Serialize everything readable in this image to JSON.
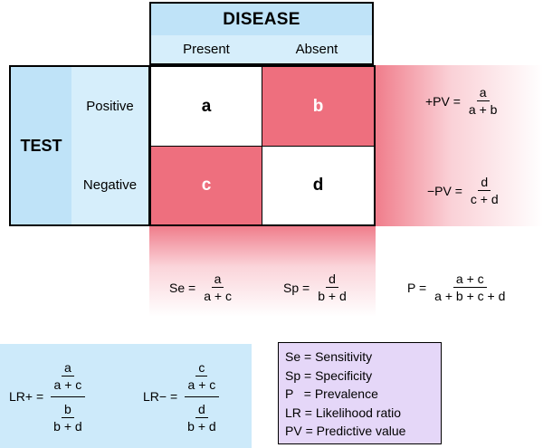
{
  "header": {
    "disease": "DISEASE",
    "test": "TEST"
  },
  "columns": [
    "Present",
    "Absent"
  ],
  "rows": [
    "Positive",
    "Negative"
  ],
  "cells": {
    "a": "a",
    "b": "b",
    "c": "c",
    "d": "d"
  },
  "formulas": {
    "ppv": {
      "label": "+PV =",
      "num": "a",
      "den": "a + b"
    },
    "npv": {
      "label": "−PV =",
      "num": "d",
      "den": "c + d"
    },
    "se": {
      "label": "Se =",
      "num": "a",
      "den": "a + c"
    },
    "sp": {
      "label": "Sp =",
      "num": "d",
      "den": "b + d"
    },
    "p": {
      "label": "P =",
      "num": "a + c",
      "den": "a + b + c + d"
    },
    "lrp": {
      "label": "LR+ =",
      "top_num": "a",
      "top_den": "a + c",
      "bot_num": "b",
      "bot_den": "b + d"
    },
    "lrn": {
      "label": "LR− =",
      "top_num": "c",
      "top_den": "a + c",
      "bot_num": "d",
      "bot_den": "b + d"
    }
  },
  "legend": [
    "Se = Sensitivity",
    "Sp = Specificity",
    "P   = Prevalence",
    "LR = Likelihood ratio",
    "PV = Predictive value"
  ],
  "colors": {
    "header_blue": "#bfe3f8",
    "light_blue": "#d6eefb",
    "cell_red": "#ee6f7e",
    "legend_purple": "#e5d7f8",
    "lr_box_blue": "#cdeafa"
  }
}
